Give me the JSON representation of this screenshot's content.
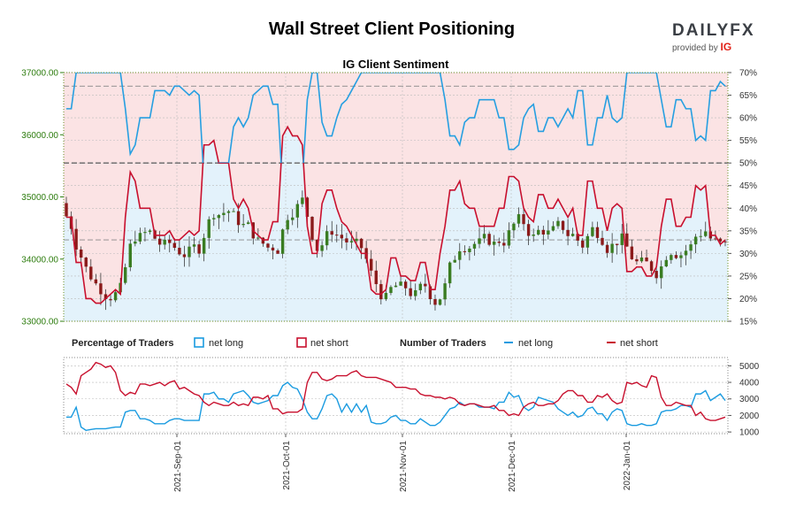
{
  "header": {
    "title": "Wall Street Client Positioning",
    "logo_text": "DAILYFX",
    "logo_sub": "provided by",
    "logo_ig": "IG"
  },
  "chart_data": [
    {
      "type": "line",
      "title": "IG Client Sentiment",
      "description_series": [
        "candles",
        "net long %",
        "net short %"
      ],
      "price_axis": {
        "side": "left",
        "ticks": [
          33000,
          34000,
          35000,
          36000,
          37000
        ],
        "ylim": [
          33000,
          37000
        ]
      },
      "percent_axis": {
        "side": "right",
        "ticks": [
          "15%",
          "20%",
          "25%",
          "30%",
          "35%",
          "40%",
          "45%",
          "50%",
          "55%",
          "60%",
          "65%",
          "70%"
        ],
        "ylim": [
          15,
          70
        ]
      },
      "reference_lines_pct": [
        50,
        67,
        33
      ],
      "x_ticks": [
        "2021-Sep-01",
        "2021-Oct-01",
        "2021-Nov-01",
        "2021-Dec-01",
        "2022-Jan-01"
      ],
      "colors": {
        "net_long": "#1a9be0",
        "net_short": "#c8102e",
        "up_candle": "#3a7d22",
        "down_candle": "#8b1a1a",
        "long_fill": "#e3f2fb",
        "short_fill": "#fbe3e4",
        "price_axis": "#2e7d0f"
      },
      "series": [
        {
          "name": "net short",
          "values_pct": [
            38,
            38,
            28,
            28,
            20,
            20,
            19,
            19,
            20,
            21,
            22,
            21,
            38,
            48,
            46,
            40,
            40,
            40,
            34,
            34,
            34,
            35,
            33,
            33,
            34,
            35,
            34,
            35,
            54,
            54,
            55,
            50,
            50,
            50,
            42,
            40,
            42,
            40,
            35,
            34,
            33,
            33,
            37,
            37,
            56,
            58,
            56,
            56,
            54,
            36,
            30,
            30,
            41,
            44,
            44,
            40,
            37,
            36,
            34,
            32,
            30,
            30,
            22,
            21,
            21,
            22,
            29,
            29,
            25,
            25,
            24,
            24,
            28,
            28,
            22,
            22,
            30,
            36,
            44,
            44,
            46,
            41,
            40,
            40,
            36,
            36,
            36,
            36,
            40,
            40,
            47,
            47,
            46,
            40,
            38,
            37,
            43,
            43,
            40,
            40,
            42,
            40,
            38,
            40,
            34,
            34,
            46,
            46,
            40,
            40,
            35,
            40,
            41,
            40,
            26,
            26,
            27,
            27,
            25,
            25,
            27,
            36,
            42,
            42,
            36,
            36,
            38,
            38,
            45,
            44,
            45,
            34,
            34,
            32,
            33
          ],
          "values_pct_rev": null
        },
        {
          "name": "net long",
          "values_pct": [
            62,
            62,
            72,
            72,
            80,
            80,
            81,
            81,
            80,
            79,
            78,
            79,
            62,
            52,
            54,
            60,
            60,
            60,
            66,
            66,
            66,
            65,
            67,
            67,
            66,
            65,
            66,
            65,
            46,
            46,
            45,
            50,
            50,
            50,
            58,
            60,
            58,
            60,
            65,
            66,
            67,
            67,
            63,
            63,
            44,
            42,
            44,
            44,
            46,
            64,
            70,
            70,
            59,
            56,
            56,
            60,
            63,
            64,
            66,
            68,
            70,
            70,
            78,
            79,
            79,
            78,
            71,
            71,
            75,
            75,
            76,
            76,
            72,
            72,
            78,
            78,
            70,
            64,
            56,
            56,
            54,
            59,
            60,
            60,
            64,
            64,
            64,
            64,
            60,
            60,
            53,
            53,
            54,
            60,
            62,
            63,
            57,
            57,
            60,
            60,
            58,
            60,
            62,
            60,
            66,
            66,
            54,
            54,
            60,
            60,
            65,
            60,
            59,
            60,
            74,
            74,
            73,
            73,
            75,
            75,
            73,
            64,
            58,
            58,
            64,
            64,
            62,
            62,
            55,
            56,
            55,
            66,
            66,
            68,
            67
          ]
        }
      ]
    },
    {
      "type": "line",
      "title": "",
      "legend_left": {
        "heading": "Percentage of Traders",
        "long": "net long",
        "short": "net short"
      },
      "legend_right": {
        "heading": "Number of Traders",
        "long": "net long",
        "short": "net short"
      },
      "axis": {
        "side": "right",
        "ticks": [
          1000,
          2000,
          3000,
          4000,
          5000
        ],
        "ylim": [
          900,
          5500
        ]
      },
      "series": [
        {
          "name": "net long",
          "values": [
            1900,
            1900,
            2500,
            1300,
            1100,
            1150,
            1200,
            1200,
            1200,
            1250,
            1300,
            1300,
            2200,
            2300,
            2300,
            1800,
            1800,
            1700,
            1500,
            1500,
            1500,
            1700,
            1800,
            1800,
            1700,
            1700,
            1700,
            1700,
            3300,
            3300,
            3400,
            3000,
            3000,
            2800,
            3300,
            3400,
            3500,
            3200,
            2800,
            2700,
            2800,
            2900,
            3200,
            3200,
            3800,
            4000,
            3700,
            3600,
            3000,
            2200,
            1800,
            1800,
            2400,
            3200,
            3300,
            3000,
            2200,
            2700,
            2200,
            2700,
            2200,
            2600,
            1600,
            1500,
            1500,
            1600,
            1900,
            2000,
            1700,
            1700,
            1500,
            1500,
            1800,
            1600,
            1400,
            1400,
            1600,
            2000,
            2400,
            2500,
            2800,
            2600,
            2700,
            2700,
            2500,
            2500,
            2500,
            2400,
            2800,
            2800,
            3400,
            3100,
            3200,
            2500,
            2300,
            2500,
            3100,
            3000,
            2900,
            2800,
            2400,
            2200,
            2000,
            2200,
            1900,
            2000,
            2400,
            2500,
            2100,
            2100,
            1700,
            2200,
            2400,
            2300,
            1500,
            1400,
            1400,
            1500,
            1400,
            1400,
            1500,
            2200,
            2300,
            2300,
            2400,
            2600,
            2600,
            2500,
            3300,
            3300,
            3500,
            2900,
            3100,
            3300,
            2900
          ],
          "values_rev": null
        },
        {
          "name": "net short",
          "values": [
            3900,
            3700,
            3300,
            4400,
            4600,
            4800,
            5200,
            5100,
            4900,
            5000,
            4600,
            3500,
            3200,
            3400,
            3300,
            3900,
            3900,
            3800,
            3900,
            4000,
            3800,
            4000,
            4100,
            3600,
            3700,
            3500,
            3300,
            3200,
            2800,
            2600,
            2800,
            2700,
            2600,
            2600,
            2800,
            2600,
            2700,
            2600,
            3100,
            3100,
            3000,
            3200,
            2400,
            2400,
            2100,
            2200,
            2200,
            2200,
            2400,
            4000,
            4600,
            4600,
            4200,
            4100,
            4200,
            4400,
            4400,
            4400,
            4600,
            4700,
            4400,
            4300,
            4300,
            4300,
            4200,
            4100,
            4000,
            3700,
            3700,
            3700,
            3600,
            3600,
            3300,
            3200,
            3200,
            3100,
            3100,
            3000,
            3100,
            3000,
            2700,
            2600,
            2700,
            2700,
            2600,
            2500,
            2500,
            2600,
            2300,
            2300,
            2000,
            2100,
            2000,
            2500,
            2700,
            2800,
            2600,
            2600,
            2700,
            2700,
            2900,
            3300,
            3500,
            3500,
            3200,
            3200,
            2800,
            2800,
            3200,
            3100,
            3300,
            2900,
            2700,
            2800,
            4000,
            3900,
            4000,
            3800,
            3700,
            4400,
            4300,
            3100,
            2600,
            2600,
            2800,
            2700,
            2600,
            2600,
            2000,
            2200,
            1800,
            1700,
            1700,
            1800,
            1900
          ]
        }
      ]
    }
  ]
}
